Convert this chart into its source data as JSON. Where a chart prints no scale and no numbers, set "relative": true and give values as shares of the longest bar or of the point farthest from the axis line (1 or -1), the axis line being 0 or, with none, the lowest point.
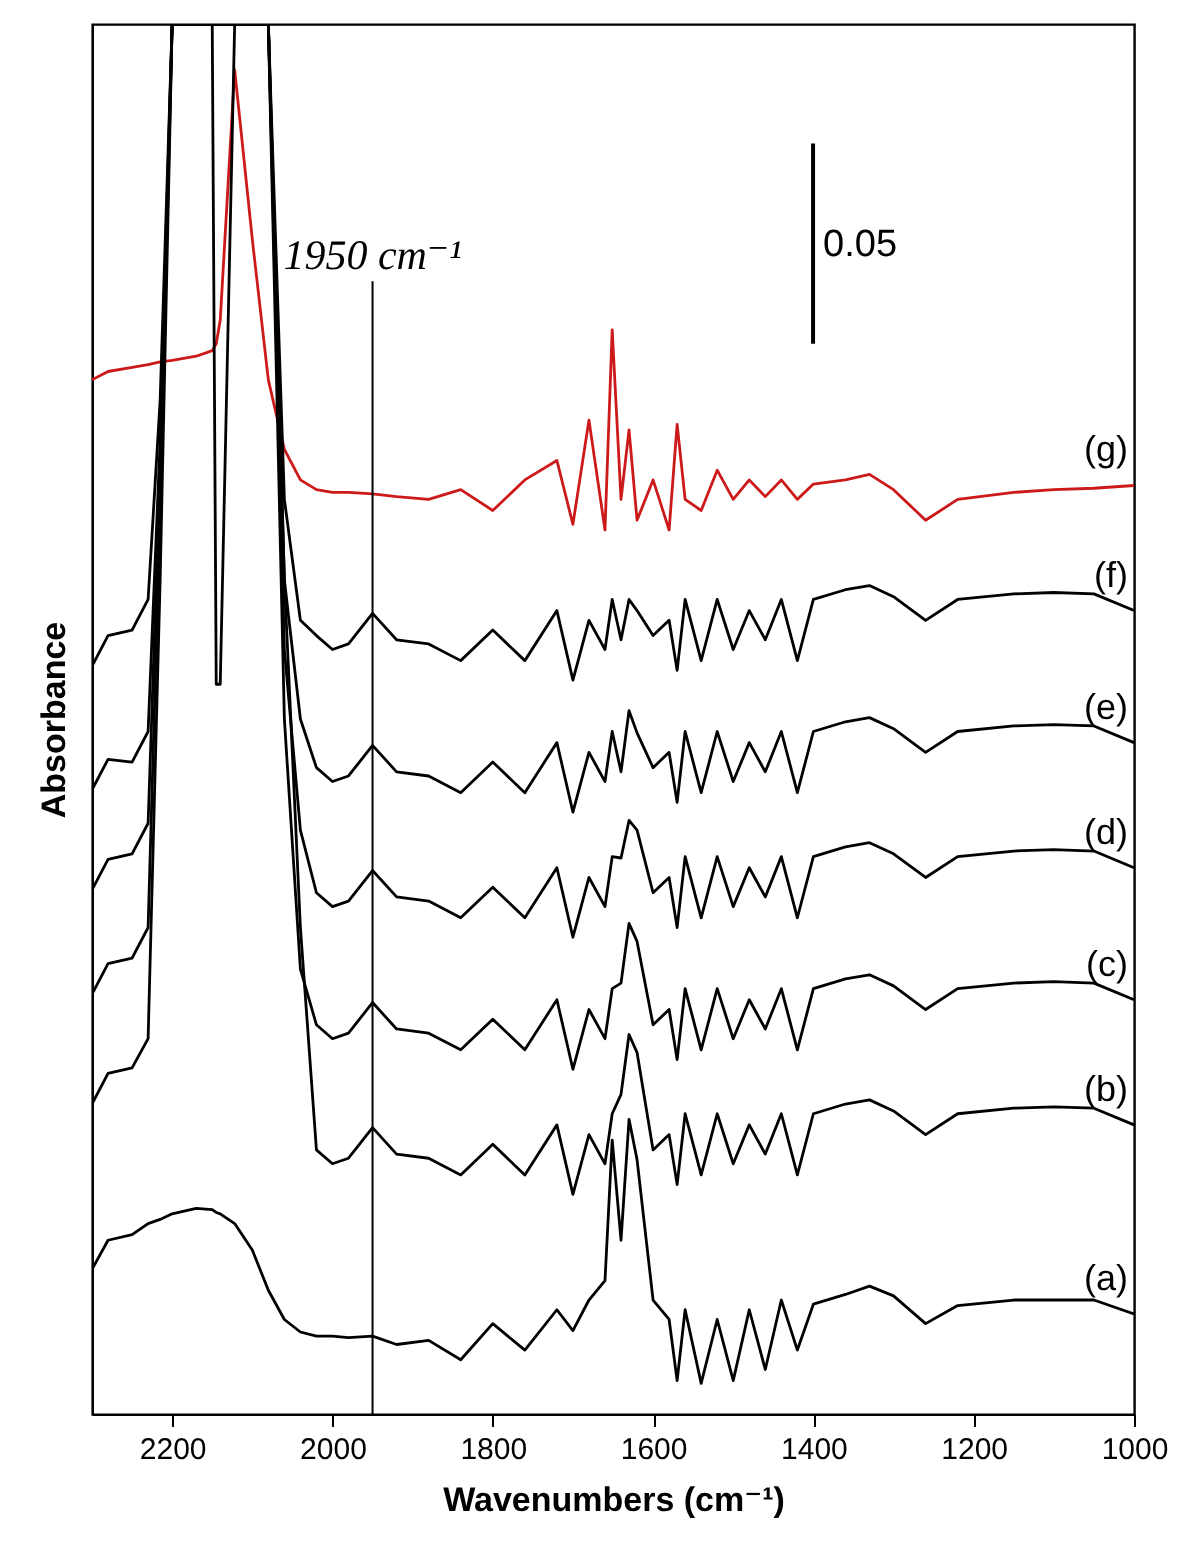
{
  "chart_data": {
    "type": "line",
    "xlabel": "Wavenumbers (cm⁻¹)",
    "ylabel": "Absorbance",
    "relative": true,
    "grid": false,
    "marker": "none",
    "line_style": "solid",
    "xlim": [
      2300,
      1000
    ],
    "xticks": [
      2200,
      2000,
      1800,
      1600,
      1400,
      1200,
      1000
    ],
    "x": [
      2300,
      2280,
      2250,
      2230,
      2215,
      2200,
      2170,
      2150,
      2145,
      2140,
      2122,
      2100,
      2080,
      2060,
      2040,
      2020,
      2000,
      1980,
      1950,
      1920,
      1880,
      1840,
      1800,
      1760,
      1720,
      1700,
      1680,
      1660,
      1651,
      1640,
      1630,
      1620,
      1600,
      1580,
      1570,
      1560,
      1540,
      1520,
      1500,
      1480,
      1460,
      1440,
      1420,
      1400,
      1360,
      1330,
      1300,
      1260,
      1220,
      1150,
      1100,
      1050,
      1000
    ],
    "ref_lines": [
      {
        "axis": "x",
        "value": 1950,
        "label": "1950 cm⁻¹",
        "color": "#000000"
      }
    ],
    "annotations": [
      "0.05"
    ],
    "series": [
      {
        "name": "(g)",
        "color": "#cc1a1a",
        "values": [
          0.744,
          0.75,
          0.753,
          0.755,
          0.757,
          0.758,
          0.761,
          0.765,
          0.77,
          0.787,
          0.967,
          0.845,
          0.744,
          0.694,
          0.672,
          0.665,
          0.663,
          0.663,
          0.662,
          0.66,
          0.658,
          0.665,
          0.65,
          0.672,
          0.686,
          0.64,
          0.715,
          0.636,
          0.78,
          0.658,
          0.708,
          0.643,
          0.672,
          0.636,
          0.712,
          0.658,
          0.65,
          0.679,
          0.658,
          0.672,
          0.66,
          0.672,
          0.658,
          0.669,
          0.672,
          0.676,
          0.665,
          0.643,
          0.658,
          0.663,
          0.665,
          0.666,
          0.668
        ]
      },
      {
        "name": "(f)",
        "color": "#000000",
        "values": [
          0.538,
          0.56,
          0.564,
          0.586,
          0.729,
          1,
          1,
          1,
          0.525,
          0.525,
          1,
          1,
          1,
          0.658,
          0.571,
          0.56,
          0.55,
          0.554,
          0.576,
          0.557,
          0.554,
          0.542,
          0.564,
          0.542,
          0.578,
          0.528,
          0.571,
          0.55,
          0.586,
          0.557,
          0.586,
          0.578,
          0.56,
          0.571,
          0.535,
          0.586,
          0.542,
          0.586,
          0.55,
          0.578,
          0.557,
          0.586,
          0.542,
          0.586,
          0.593,
          0.596,
          0.588,
          0.571,
          0.586,
          0.59,
          0.591,
          0.59,
          0.578
        ]
      },
      {
        "name": "(e)",
        "color": "#000000",
        "values": [
          0.449,
          0.471,
          0.469,
          0.491,
          0.7,
          1,
          1,
          1,
          1,
          1,
          1,
          1,
          1,
          0.6,
          0.5,
          0.465,
          0.455,
          0.459,
          0.481,
          0.462,
          0.459,
          0.447,
          0.469,
          0.447,
          0.483,
          0.433,
          0.476,
          0.455,
          0.491,
          0.462,
          0.506,
          0.49,
          0.465,
          0.476,
          0.44,
          0.491,
          0.447,
          0.491,
          0.455,
          0.483,
          0.462,
          0.491,
          0.447,
          0.491,
          0.498,
          0.501,
          0.493,
          0.476,
          0.491,
          0.495,
          0.496,
          0.495,
          0.483
        ]
      },
      {
        "name": "(d)",
        "color": "#000000",
        "values": [
          0.377,
          0.399,
          0.403,
          0.425,
          0.68,
          1,
          1,
          1,
          1,
          1,
          1,
          1,
          1,
          0.55,
          0.42,
          0.375,
          0.365,
          0.369,
          0.391,
          0.372,
          0.369,
          0.357,
          0.379,
          0.357,
          0.393,
          0.343,
          0.386,
          0.365,
          0.401,
          0.4,
          0.427,
          0.42,
          0.375,
          0.386,
          0.35,
          0.401,
          0.357,
          0.401,
          0.365,
          0.393,
          0.372,
          0.401,
          0.357,
          0.401,
          0.408,
          0.411,
          0.403,
          0.386,
          0.401,
          0.405,
          0.406,
          0.405,
          0.393
        ]
      },
      {
        "name": "(c)",
        "color": "#000000",
        "values": [
          0.302,
          0.324,
          0.328,
          0.35,
          0.65,
          1,
          1,
          1,
          1,
          1,
          1,
          1,
          1,
          0.5,
          0.32,
          0.28,
          0.27,
          0.274,
          0.296,
          0.277,
          0.274,
          0.262,
          0.284,
          0.262,
          0.298,
          0.248,
          0.291,
          0.27,
          0.306,
          0.31,
          0.353,
          0.34,
          0.28,
          0.291,
          0.255,
          0.306,
          0.262,
          0.306,
          0.27,
          0.298,
          0.277,
          0.306,
          0.262,
          0.306,
          0.313,
          0.316,
          0.308,
          0.291,
          0.306,
          0.31,
          0.311,
          0.31,
          0.298
        ]
      },
      {
        "name": "(b)",
        "color": "#000000",
        "values": [
          0.223,
          0.245,
          0.249,
          0.27,
          0.6,
          1,
          1,
          1,
          1,
          1,
          1,
          1,
          1,
          0.6,
          0.35,
          0.19,
          0.18,
          0.184,
          0.206,
          0.187,
          0.184,
          0.172,
          0.194,
          0.172,
          0.208,
          0.158,
          0.201,
          0.18,
          0.216,
          0.23,
          0.273,
          0.26,
          0.19,
          0.201,
          0.165,
          0.216,
          0.172,
          0.216,
          0.18,
          0.208,
          0.187,
          0.216,
          0.172,
          0.216,
          0.223,
          0.226,
          0.218,
          0.201,
          0.216,
          0.22,
          0.221,
          0.22,
          0.208
        ]
      },
      {
        "name": "(a)",
        "color": "#000000",
        "values": [
          0.104,
          0.125,
          0.129,
          0.137,
          0.14,
          0.144,
          0.148,
          0.147,
          0.145,
          0.144,
          0.137,
          0.118,
          0.089,
          0.068,
          0.059,
          0.056,
          0.056,
          0.055,
          0.056,
          0.05,
          0.053,
          0.039,
          0.065,
          0.046,
          0.075,
          0.06,
          0.082,
          0.096,
          0.197,
          0.125,
          0.212,
          0.183,
          0.082,
          0.068,
          0.024,
          0.075,
          0.022,
          0.068,
          0.024,
          0.075,
          0.032,
          0.082,
          0.046,
          0.079,
          0.086,
          0.092,
          0.085,
          0.065,
          0.078,
          0.082,
          0.082,
          0.082,
          0.072
        ]
      }
    ]
  }
}
